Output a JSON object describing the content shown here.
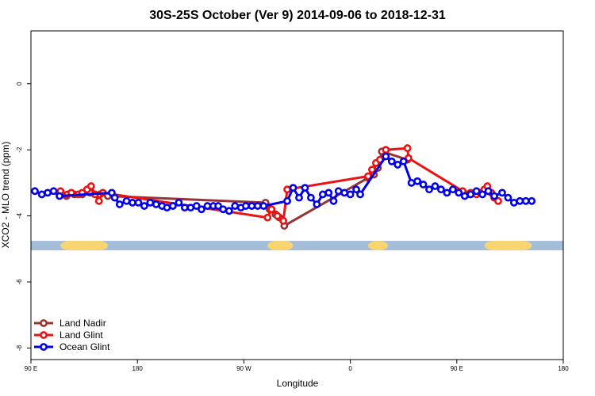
{
  "chart_data": {
    "type": "line",
    "title": "30S-25S October (Ver 9)   2014-09-06 to 2018-12-31",
    "xlabel": "Longitude",
    "ylabel": "XCO2 - MLO trend (ppm)",
    "xlim": [
      -90,
      180
    ],
    "ylim": [
      -8.35,
      1.6
    ],
    "x_ticks": [
      {
        "value": -90,
        "label": "90 E"
      },
      {
        "value": -36,
        "label": "180"
      },
      {
        "value": 18,
        "label": "90 W"
      },
      {
        "value": 72,
        "label": "0"
      },
      {
        "value": 126,
        "label": "90 E"
      },
      {
        "value": 180,
        "label": "180"
      }
    ],
    "y_ticks": [
      {
        "value": 0,
        "label": "0"
      },
      {
        "value": -2,
        "label": "-2"
      },
      {
        "value": -4,
        "label": "-4"
      },
      {
        "value": -6,
        "label": "-6"
      },
      {
        "value": -8,
        "label": "-8"
      }
    ],
    "land_ocean_band": {
      "y": -4.9,
      "ocean_color": "#a4bdd8",
      "land_color": "#f8d570",
      "land_segments": [
        [
          -75,
          -51
        ],
        [
          30,
          43
        ],
        [
          81,
          91
        ],
        [
          140,
          164
        ]
      ]
    },
    "legend_position": "bottom-left",
    "series": [
      {
        "name": "Land Nadir",
        "color": "#993333",
        "points": [
          [
            -75.5,
            -3.35
          ],
          [
            -72,
            -3.4
          ],
          [
            -68,
            -3.35
          ],
          [
            -64,
            -3.35
          ],
          [
            -60,
            -3.3
          ],
          [
            -55,
            -3.35
          ],
          [
            -51,
            -3.4
          ],
          [
            29,
            -3.6
          ],
          [
            31,
            -3.8
          ],
          [
            34,
            -3.95
          ],
          [
            36,
            -4.05
          ],
          [
            38.5,
            -4.3
          ],
          [
            81,
            -2.85
          ],
          [
            84,
            -2.75
          ],
          [
            86,
            -2.55
          ],
          [
            88,
            -2.05
          ],
          [
            101,
            -2.3
          ]
        ]
      },
      {
        "name": "Land Glint",
        "color": "#ee1111",
        "points": [
          [
            -75,
            -3.25
          ],
          [
            -71.5,
            -3.35
          ],
          [
            -69.5,
            -3.3
          ],
          [
            -66,
            -3.35
          ],
          [
            -64,
            -3.3
          ],
          [
            -61.5,
            -3.2
          ],
          [
            -59.5,
            -3.1
          ],
          [
            -57.5,
            -3.35
          ],
          [
            -55.5,
            -3.55
          ],
          [
            -53.5,
            -3.3
          ],
          [
            30,
            -4.05
          ],
          [
            32,
            -3.8
          ],
          [
            35,
            -4.0
          ],
          [
            38,
            -4.15
          ],
          [
            40,
            -3.2
          ],
          [
            81,
            -2.8
          ],
          [
            83,
            -2.6
          ],
          [
            85,
            -2.4
          ],
          [
            87,
            -2.3
          ],
          [
            90,
            -2.0
          ],
          [
            101,
            -1.95
          ],
          [
            101.5,
            -2.25
          ],
          [
            129,
            -3.25
          ],
          [
            131.5,
            -3.35
          ],
          [
            133,
            -3.3
          ],
          [
            136,
            -3.35
          ],
          [
            138,
            -3.3
          ],
          [
            140,
            -3.2
          ],
          [
            141.5,
            -3.1
          ],
          [
            143.5,
            -3.3
          ],
          [
            145,
            -3.45
          ],
          [
            147,
            -3.55
          ]
        ]
      },
      {
        "name": "Ocean Glint",
        "color": "#0000ee",
        "points": [
          [
            -88,
            -3.25
          ],
          [
            -84.5,
            -3.35
          ],
          [
            -81.5,
            -3.3
          ],
          [
            -78.5,
            -3.25
          ],
          [
            -75.5,
            -3.4
          ],
          [
            -49,
            -3.3
          ],
          [
            -47.5,
            -3.45
          ],
          [
            -45,
            -3.65
          ],
          [
            -41.5,
            -3.55
          ],
          [
            -38.5,
            -3.6
          ],
          [
            -35.5,
            -3.6
          ],
          [
            -32.5,
            -3.7
          ],
          [
            -29.5,
            -3.6
          ],
          [
            -26.5,
            -3.65
          ],
          [
            -23.5,
            -3.7
          ],
          [
            -21,
            -3.75
          ],
          [
            -18,
            -3.7
          ],
          [
            -15,
            -3.6
          ],
          [
            -12,
            -3.75
          ],
          [
            -9,
            -3.75
          ],
          [
            -6,
            -3.7
          ],
          [
            -3.5,
            -3.8
          ],
          [
            -0.5,
            -3.7
          ],
          [
            2.5,
            -3.7
          ],
          [
            5,
            -3.7
          ],
          [
            7.5,
            -3.8
          ],
          [
            10.5,
            -3.85
          ],
          [
            13.5,
            -3.7
          ],
          [
            16.5,
            -3.75
          ],
          [
            19,
            -3.7
          ],
          [
            22,
            -3.7
          ],
          [
            25,
            -3.7
          ],
          [
            28,
            -3.7
          ],
          [
            40,
            -3.55
          ],
          [
            43,
            -3.15
          ],
          [
            46,
            -3.45
          ],
          [
            49,
            -3.15
          ],
          [
            52,
            -3.45
          ],
          [
            55,
            -3.65
          ],
          [
            58,
            -3.35
          ],
          [
            61,
            -3.3
          ],
          [
            63.5,
            -3.55
          ],
          [
            66,
            -3.25
          ],
          [
            69,
            -3.3
          ],
          [
            72,
            -3.35
          ],
          [
            75,
            -3.2
          ],
          [
            77,
            -3.35
          ],
          [
            90,
            -2.2
          ],
          [
            93,
            -2.35
          ],
          [
            96,
            -2.45
          ],
          [
            99,
            -2.35
          ],
          [
            103,
            -3.0
          ],
          [
            106,
            -2.95
          ],
          [
            109,
            -3.05
          ],
          [
            112,
            -3.2
          ],
          [
            115,
            -3.1
          ],
          [
            118,
            -3.2
          ],
          [
            121,
            -3.3
          ],
          [
            124,
            -3.2
          ],
          [
            127,
            -3.3
          ],
          [
            130,
            -3.4
          ],
          [
            133,
            -3.35
          ],
          [
            136,
            -3.25
          ],
          [
            139,
            -3.35
          ],
          [
            142,
            -3.25
          ],
          [
            145,
            -3.4
          ],
          [
            149,
            -3.3
          ],
          [
            152,
            -3.45
          ],
          [
            155,
            -3.6
          ],
          [
            158,
            -3.55
          ],
          [
            161,
            -3.55
          ],
          [
            164,
            -3.55
          ]
        ]
      }
    ]
  }
}
